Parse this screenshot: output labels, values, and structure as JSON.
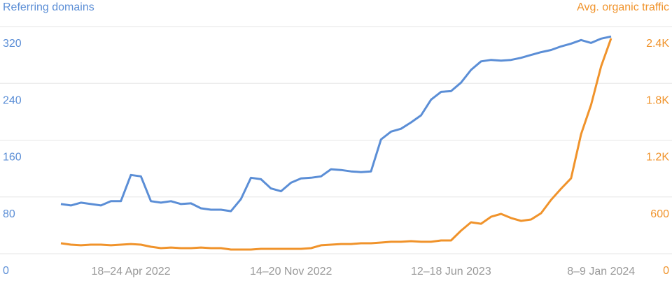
{
  "chart_data": {
    "type": "line",
    "y_label": "Referring domains",
    "y2_label": "Avg. organic traffic",
    "categories": [
      null,
      null,
      null,
      null,
      null,
      null,
      null,
      "18–24 Apr 2022",
      null,
      null,
      null,
      null,
      null,
      null,
      null,
      null,
      null,
      null,
      null,
      null,
      null,
      null,
      null,
      "14–20 Nov 2022",
      null,
      null,
      null,
      null,
      null,
      null,
      null,
      null,
      null,
      null,
      null,
      null,
      null,
      null,
      null,
      "12–18 Jun 2023",
      null,
      null,
      null,
      null,
      null,
      null,
      null,
      null,
      null,
      null,
      null,
      null,
      null,
      null,
      "8–9 Jan 2024",
      null
    ],
    "series": [
      {
        "name": "Referring domains",
        "color": "#5b8ed6",
        "axis": "y",
        "values": [
          70,
          68,
          72,
          70,
          68,
          74,
          74,
          111,
          109,
          74,
          72,
          74,
          70,
          71,
          64,
          62,
          62,
          60,
          77,
          107,
          105,
          92,
          88,
          100,
          106,
          107,
          109,
          119,
          118,
          116,
          115,
          116,
          161,
          172,
          176,
          185,
          195,
          217,
          228,
          229,
          241,
          259,
          271,
          273,
          272,
          273,
          276,
          280,
          284,
          287,
          292,
          296,
          301,
          297,
          303,
          306
        ]
      },
      {
        "name": "Avg. organic traffic",
        "color": "#f0932b",
        "axis": "y2",
        "values": [
          111,
          96,
          89,
          96,
          96,
          89,
          96,
          103,
          96,
          74,
          59,
          66,
          59,
          59,
          66,
          59,
          59,
          44,
          44,
          44,
          52,
          52,
          52,
          52,
          52,
          59,
          89,
          96,
          103,
          103,
          111,
          111,
          118,
          126,
          126,
          133,
          126,
          126,
          140,
          140,
          244,
          332,
          317,
          391,
          421,
          377,
          347,
          362,
          428,
          569,
          687,
          797,
          1263,
          1573,
          1979,
          2275
        ]
      }
    ],
    "ylim": [
      0,
      320
    ],
    "yticks": [
      0,
      80,
      160,
      240,
      320
    ],
    "y2lim": [
      0,
      2400
    ],
    "y2ticks": [
      0,
      600,
      {
        "value": 1200,
        "label": "1.2K"
      },
      {
        "value": 1800,
        "label": "1.8K"
      },
      {
        "value": 2400,
        "label": "2.4K"
      }
    ],
    "grid": true
  }
}
